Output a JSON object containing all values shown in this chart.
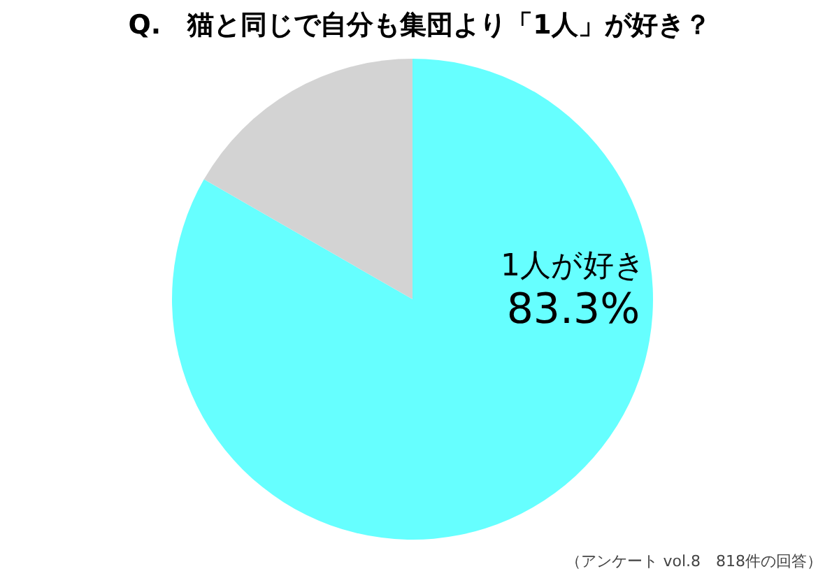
{
  "chart_data": {
    "type": "pie",
    "title": "Q.　猫と同じで自分も集団より「1人」が好き？",
    "categories": [
      "1人が好き",
      null
    ],
    "values": [
      83.3,
      16.7
    ],
    "colors": [
      "#66ffff",
      "#d3d3d3"
    ],
    "value_labels": [
      "83.3%",
      null
    ],
    "annotations": [
      "（アンケート vol.8　818件の回答）"
    ]
  }
}
